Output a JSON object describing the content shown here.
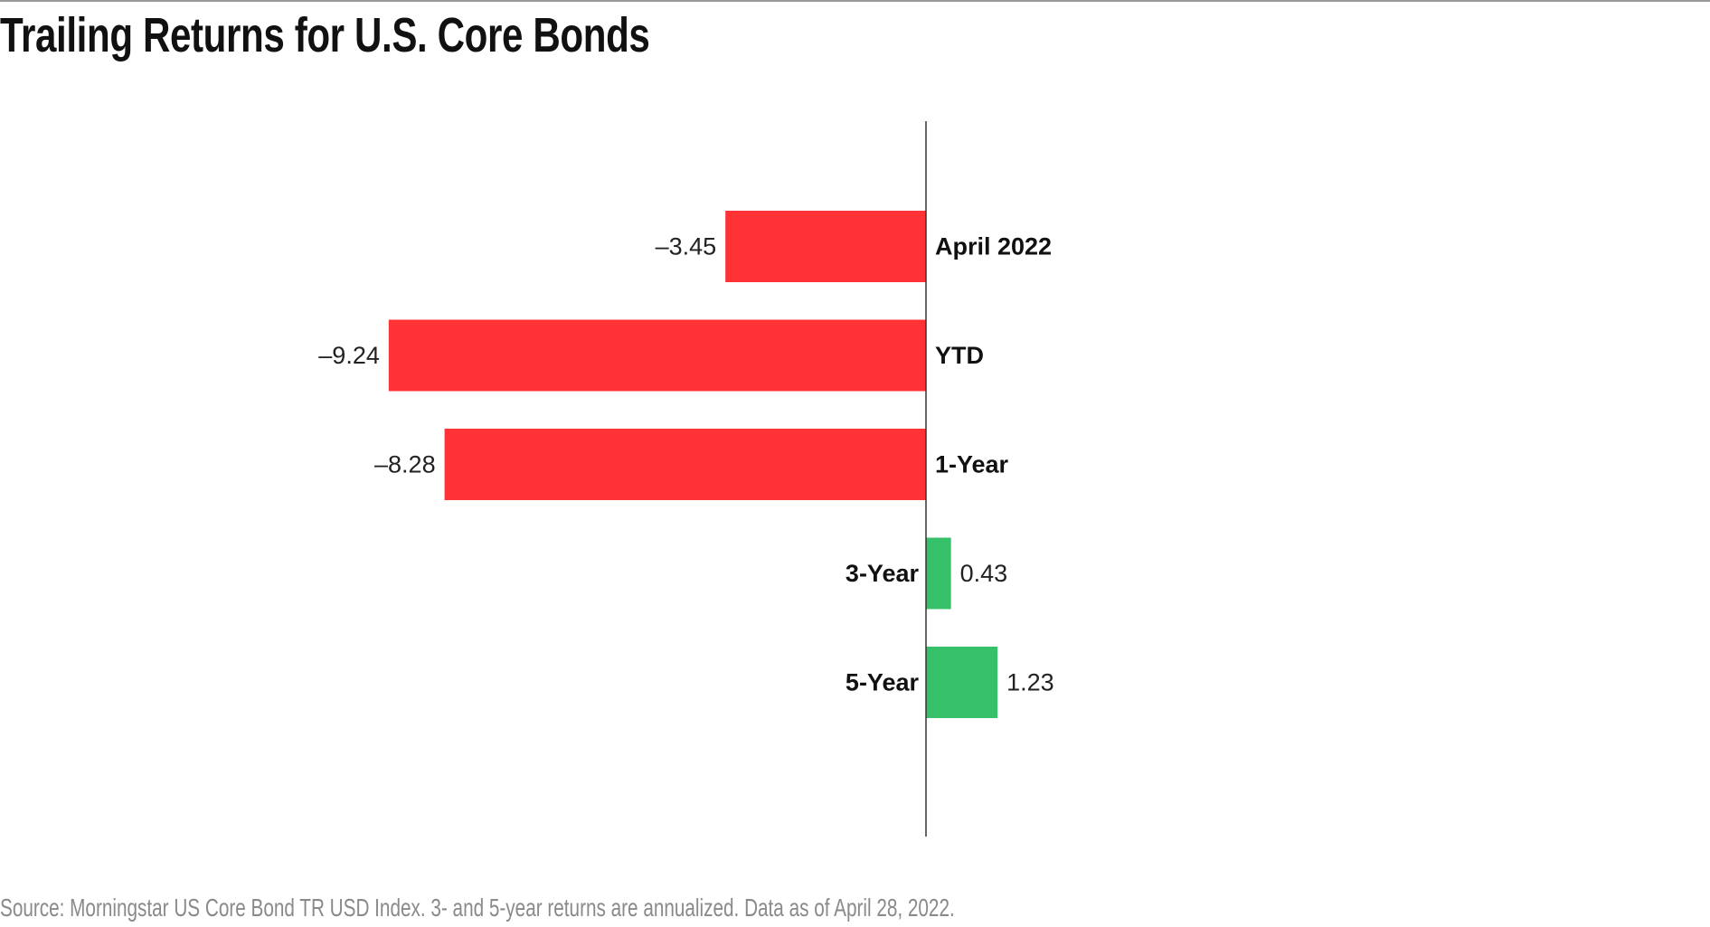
{
  "title": "Trailing Returns for U.S. Core Bonds",
  "footer": "Source: Morningstar US Core Bond TR USD Index. 3- and 5-year returns are annualized. Data as of April 28, 2022.",
  "colors": {
    "negative": "#ff3336",
    "positive": "#36c06a",
    "axis": "#333333"
  },
  "chart_data": {
    "type": "bar",
    "orientation": "horizontal",
    "title": "Trailing Returns for U.S. Core Bonds",
    "categories": [
      "April 2022",
      "YTD",
      "1-Year",
      "3-Year",
      "5-Year"
    ],
    "values": [
      -3.45,
      -9.24,
      -8.28,
      0.43,
      1.23
    ],
    "value_labels": [
      "–3.45",
      "–9.24",
      "–8.28",
      "0.43",
      "1.23"
    ],
    "xlabel": "",
    "ylabel": "",
    "grid": false
  }
}
